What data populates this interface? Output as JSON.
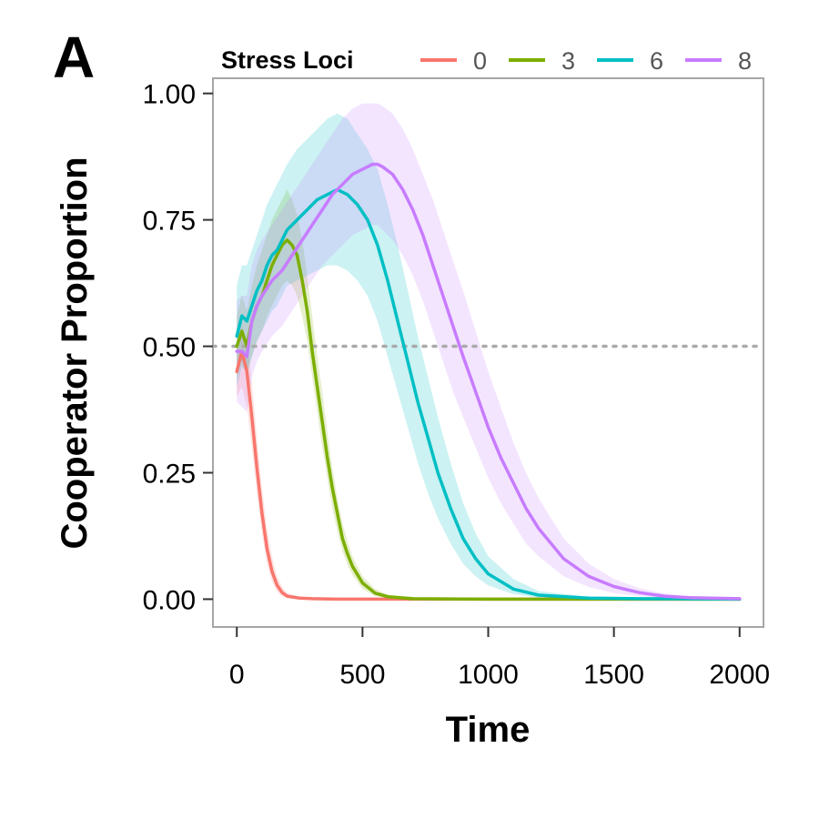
{
  "chart_data": {
    "type": "line",
    "panel_label": "A",
    "title": "",
    "xlabel": "Time",
    "ylabel": "Cooperator Proportion",
    "xlim": [
      -95,
      2095
    ],
    "ylim": [
      -0.055,
      1.03
    ],
    "x_ticks": [
      0,
      500,
      1000,
      1500,
      2000
    ],
    "x_tick_labels": [
      "0",
      "500",
      "1000",
      "1500",
      "2000"
    ],
    "y_ticks": [
      0,
      0.25,
      0.5,
      0.75,
      1.0
    ],
    "y_tick_labels": [
      "0.00",
      "0.25",
      "0.50",
      "0.75",
      "1.00"
    ],
    "grid": false,
    "reference_line": {
      "y": 0.5,
      "style": "dotted",
      "color": "#aaaaaa"
    },
    "legend": {
      "title": "Stress Loci",
      "position": "top",
      "orientation": "horizontal"
    },
    "series": [
      {
        "name": "0",
        "color": "#F8766D",
        "x": [
          0,
          20,
          40,
          60,
          80,
          100,
          120,
          140,
          160,
          180,
          200,
          250,
          300,
          400,
          600,
          1000,
          2000
        ],
        "y": [
          0.45,
          0.49,
          0.45,
          0.36,
          0.26,
          0.17,
          0.1,
          0.055,
          0.028,
          0.013,
          0.006,
          0.002,
          0.001,
          0,
          0,
          0,
          0
        ],
        "lower": [
          0.4,
          0.42,
          0.38,
          0.3,
          0.21,
          0.13,
          0.07,
          0.035,
          0.015,
          0.006,
          0.002,
          0,
          0,
          0,
          0,
          0,
          0
        ],
        "upper": [
          0.5,
          0.54,
          0.51,
          0.43,
          0.32,
          0.22,
          0.14,
          0.085,
          0.045,
          0.025,
          0.012,
          0.005,
          0.002,
          0,
          0,
          0,
          0
        ]
      },
      {
        "name": "3",
        "color": "#7CAE00",
        "x": [
          0,
          20,
          40,
          60,
          80,
          100,
          120,
          140,
          160,
          180,
          200,
          220,
          240,
          260,
          280,
          300,
          320,
          340,
          360,
          380,
          400,
          420,
          440,
          460,
          500,
          550,
          600,
          700,
          1000,
          2000
        ],
        "y": [
          0.5,
          0.53,
          0.5,
          0.55,
          0.58,
          0.6,
          0.63,
          0.66,
          0.68,
          0.7,
          0.71,
          0.7,
          0.68,
          0.63,
          0.57,
          0.49,
          0.42,
          0.35,
          0.28,
          0.22,
          0.17,
          0.12,
          0.09,
          0.065,
          0.032,
          0.012,
          0.005,
          0.001,
          0,
          0
        ],
        "lower": [
          0.44,
          0.47,
          0.44,
          0.48,
          0.51,
          0.53,
          0.56,
          0.58,
          0.6,
          0.62,
          0.63,
          0.62,
          0.6,
          0.56,
          0.51,
          0.44,
          0.37,
          0.3,
          0.24,
          0.18,
          0.135,
          0.095,
          0.068,
          0.048,
          0.02,
          0.006,
          0.002,
          0,
          0,
          0
        ],
        "upper": [
          0.56,
          0.6,
          0.57,
          0.62,
          0.66,
          0.69,
          0.72,
          0.75,
          0.77,
          0.79,
          0.81,
          0.79,
          0.76,
          0.71,
          0.64,
          0.56,
          0.48,
          0.41,
          0.33,
          0.26,
          0.2,
          0.15,
          0.115,
          0.085,
          0.045,
          0.02,
          0.009,
          0.003,
          0,
          0
        ]
      },
      {
        "name": "6",
        "color": "#00BFC4",
        "x": [
          0,
          20,
          40,
          60,
          80,
          100,
          120,
          140,
          160,
          180,
          200,
          240,
          280,
          320,
          360,
          400,
          440,
          480,
          520,
          560,
          600,
          640,
          680,
          720,
          760,
          800,
          850,
          900,
          950,
          1000,
          1100,
          1200,
          1400,
          1600,
          2000
        ],
        "y": [
          0.52,
          0.56,
          0.55,
          0.58,
          0.61,
          0.63,
          0.66,
          0.68,
          0.69,
          0.71,
          0.73,
          0.75,
          0.77,
          0.79,
          0.8,
          0.81,
          0.8,
          0.78,
          0.75,
          0.7,
          0.63,
          0.55,
          0.47,
          0.39,
          0.32,
          0.25,
          0.18,
          0.12,
          0.08,
          0.05,
          0.02,
          0.008,
          0.002,
          0.001,
          0
        ],
        "lower": [
          0.42,
          0.46,
          0.45,
          0.48,
          0.51,
          0.53,
          0.55,
          0.57,
          0.58,
          0.6,
          0.62,
          0.63,
          0.64,
          0.65,
          0.66,
          0.66,
          0.65,
          0.63,
          0.6,
          0.55,
          0.48,
          0.41,
          0.34,
          0.27,
          0.21,
          0.16,
          0.11,
          0.07,
          0.045,
          0.027,
          0.01,
          0.003,
          0.001,
          0,
          0
        ],
        "upper": [
          0.62,
          0.66,
          0.66,
          0.69,
          0.72,
          0.75,
          0.78,
          0.8,
          0.82,
          0.84,
          0.86,
          0.89,
          0.91,
          0.93,
          0.95,
          0.96,
          0.95,
          0.92,
          0.89,
          0.85,
          0.78,
          0.7,
          0.61,
          0.52,
          0.44,
          0.36,
          0.27,
          0.19,
          0.13,
          0.085,
          0.04,
          0.016,
          0.005,
          0.002,
          0
        ]
      },
      {
        "name": "8",
        "color": "#C77CFF",
        "x": [
          0,
          20,
          40,
          60,
          80,
          100,
          140,
          180,
          220,
          260,
          300,
          340,
          380,
          420,
          460,
          500,
          540,
          560,
          580,
          620,
          660,
          700,
          740,
          780,
          820,
          860,
          900,
          950,
          1000,
          1050,
          1100,
          1150,
          1200,
          1300,
          1400,
          1500,
          1600,
          1700,
          1800,
          2000
        ],
        "y": [
          0.49,
          0.49,
          0.48,
          0.55,
          0.58,
          0.6,
          0.63,
          0.65,
          0.68,
          0.71,
          0.74,
          0.77,
          0.8,
          0.82,
          0.84,
          0.85,
          0.86,
          0.86,
          0.855,
          0.84,
          0.81,
          0.77,
          0.72,
          0.66,
          0.6,
          0.54,
          0.48,
          0.41,
          0.34,
          0.28,
          0.23,
          0.18,
          0.14,
          0.08,
          0.045,
          0.025,
          0.013,
          0.006,
          0.003,
          0.001
        ],
        "lower": [
          0.39,
          0.38,
          0.37,
          0.44,
          0.47,
          0.49,
          0.52,
          0.54,
          0.57,
          0.6,
          0.63,
          0.66,
          0.68,
          0.7,
          0.72,
          0.73,
          0.74,
          0.74,
          0.73,
          0.71,
          0.68,
          0.64,
          0.59,
          0.53,
          0.47,
          0.41,
          0.36,
          0.3,
          0.24,
          0.19,
          0.15,
          0.11,
          0.085,
          0.045,
          0.024,
          0.012,
          0.006,
          0.003,
          0.001,
          0
        ],
        "upper": [
          0.59,
          0.6,
          0.6,
          0.66,
          0.69,
          0.71,
          0.74,
          0.77,
          0.8,
          0.83,
          0.86,
          0.89,
          0.92,
          0.95,
          0.97,
          0.98,
          0.98,
          0.98,
          0.975,
          0.96,
          0.93,
          0.89,
          0.84,
          0.79,
          0.73,
          0.67,
          0.61,
          0.53,
          0.45,
          0.38,
          0.31,
          0.25,
          0.2,
          0.12,
          0.07,
          0.04,
          0.022,
          0.011,
          0.005,
          0.002
        ]
      }
    ]
  }
}
